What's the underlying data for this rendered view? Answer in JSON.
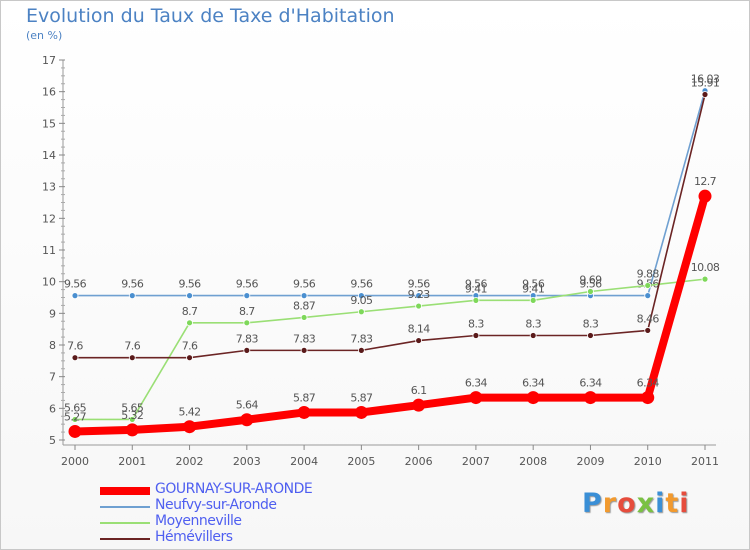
{
  "title": "Evolution du Taux de Taxe d'Habitation",
  "unit_label": "(en %)",
  "brand": {
    "text": "Proxiti",
    "colors": [
      "#3a8fd6",
      "#f29a2e",
      "#e64c3c",
      "#7ac143",
      "#3a8fd6",
      "#f29a2e",
      "#e64c3c"
    ]
  },
  "chart_data": {
    "type": "line",
    "categories": [
      "2000",
      "2001",
      "2002",
      "2003",
      "2004",
      "2005",
      "2006",
      "2007",
      "2008",
      "2009",
      "2010",
      "2011"
    ],
    "ylim": [
      5,
      17
    ],
    "yticks": [
      "5",
      "6",
      "7",
      "8",
      "9",
      "10",
      "11",
      "12",
      "13",
      "14",
      "15",
      "16",
      "17"
    ],
    "grid": false,
    "legend_position": "bottom",
    "series": [
      {
        "name": "Neufvy-sur-Aronde",
        "color": "#6fa0d1",
        "marker_color": "#4a8fd0",
        "values": [
          9.56,
          9.56,
          9.56,
          9.56,
          9.56,
          9.56,
          9.56,
          9.56,
          9.56,
          9.56,
          9.56,
          16.03
        ],
        "labels": [
          "9.56",
          "9.56",
          "9.56",
          "9.56",
          "9.56",
          "9.56",
          "9.56",
          "9.56",
          "9.56",
          "9.56",
          "9.56",
          "16.03"
        ]
      },
      {
        "name": "Moyenneville",
        "color": "#9adf75",
        "marker_color": "#7ed85a",
        "values": [
          5.65,
          5.65,
          8.7,
          8.7,
          8.87,
          9.05,
          9.23,
          9.41,
          9.41,
          9.69,
          9.88,
          10.08
        ],
        "labels": [
          "5.65",
          "5.65",
          "8.7",
          "8.7",
          "8.87",
          "9.05",
          "9.23",
          "9.41",
          "9.41",
          "9.69",
          "9.88",
          "10.08"
        ]
      },
      {
        "name": "Hémévillers",
        "color": "#6b2424",
        "marker_color": "#5a1a1a",
        "values": [
          7.6,
          7.6,
          7.6,
          7.83,
          7.83,
          7.83,
          8.14,
          8.3,
          8.3,
          8.3,
          8.46,
          15.91
        ],
        "labels": [
          "7.6",
          "7.6",
          "7.6",
          "7.83",
          "7.83",
          "7.83",
          "8.14",
          "8.3",
          "8.3",
          "8.3",
          "8.46",
          "15.91"
        ]
      },
      {
        "name": "GOURNAY-SUR-ARONDE",
        "color": "#ff0000",
        "marker_color": "#ff0000",
        "values": [
          5.27,
          5.32,
          5.42,
          5.64,
          5.87,
          5.87,
          6.1,
          6.34,
          6.34,
          6.34,
          6.34,
          12.7
        ],
        "labels": [
          "5.27",
          "5.32",
          "5.42",
          "5.64",
          "5.87",
          "5.87",
          "6.1",
          "6.34",
          "6.34",
          "6.34",
          "6.34",
          "12.7"
        ]
      }
    ],
    "legend_order": [
      "GOURNAY-SUR-ARONDE",
      "Neufvy-sur-Aronde",
      "Moyenneville",
      "Hémévillers"
    ]
  }
}
